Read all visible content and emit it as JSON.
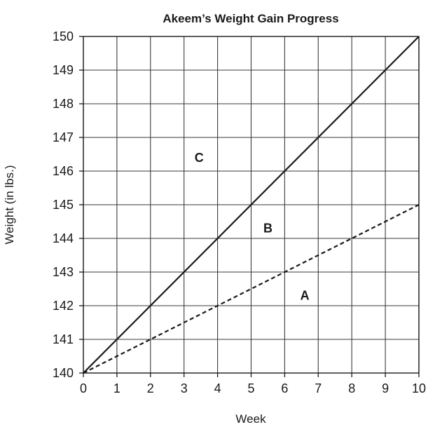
{
  "chart_data": {
    "type": "line",
    "title": "Akeem’s Weight Gain Progress",
    "xlabel": "Week",
    "ylabel": "Weight (in lbs.)",
    "xlim": [
      0,
      10
    ],
    "ylim": [
      140,
      150
    ],
    "x_ticks": [
      0,
      1,
      2,
      3,
      4,
      5,
      6,
      7,
      8,
      9,
      10
    ],
    "y_ticks": [
      140,
      141,
      142,
      143,
      144,
      145,
      146,
      147,
      148,
      149,
      150
    ],
    "grid": true,
    "legend": "none",
    "series": [
      {
        "style": "solid",
        "color": "#1a1a1a",
        "x": [
          0,
          10
        ],
        "y": [
          140,
          150
        ]
      },
      {
        "style": "dashed",
        "color": "#1a1a1a",
        "x": [
          0,
          10
        ],
        "y": [
          140,
          145
        ]
      }
    ],
    "annotations": [
      {
        "text": "C",
        "x": 3.45,
        "y": 146.4
      },
      {
        "text": "B",
        "x": 5.5,
        "y": 144.3
      },
      {
        "text": "A",
        "x": 6.6,
        "y": 142.3
      }
    ]
  }
}
